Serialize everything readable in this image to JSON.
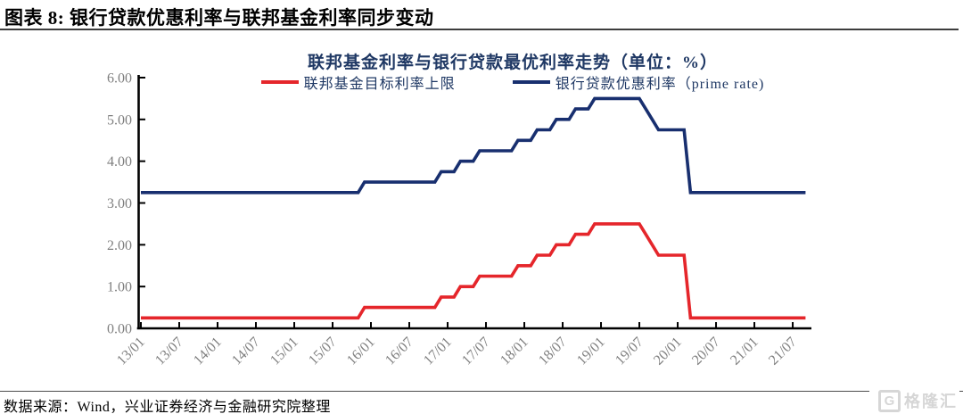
{
  "page": {
    "header_title": "图表 8: 银行贷款优惠利率与联邦基金利率同步变动",
    "footer_source": "数据来源：Wind，兴业证券经济与金融研究院整理",
    "watermark": {
      "icon": "G",
      "text": "格隆汇"
    }
  },
  "chart_data": {
    "type": "line",
    "subtype": "step",
    "frequency": "monthly",
    "title": "联邦基金利率与银行贷款最优利率走势（单位：%）",
    "unit": "%",
    "legend_position": "top",
    "grid": "off",
    "x_start": "13/01",
    "x_end": "21/09",
    "x_tick_labels": [
      "13/01",
      "13/07",
      "14/01",
      "14/07",
      "15/01",
      "15/07",
      "16/01",
      "16/07",
      "17/01",
      "17/07",
      "18/01",
      "18/07",
      "19/01",
      "19/07",
      "20/01",
      "20/07",
      "21/01",
      "21/07"
    ],
    "ylim": [
      0,
      6
    ],
    "y_tick_labels": [
      "0.00",
      "1.00",
      "2.00",
      "3.00",
      "4.00",
      "5.00",
      "6.00"
    ],
    "axis_color": "#000000",
    "tick_label_color": "#7f7f7f",
    "title_color": "#1f3864",
    "series": [
      {
        "name": "联邦基金目标利率上限",
        "color": "#e5262b",
        "step_points": [
          [
            "13/01",
            0.25
          ],
          [
            "15/12",
            0.5
          ],
          [
            "16/12",
            0.75
          ],
          [
            "17/03",
            1.0
          ],
          [
            "17/06",
            1.25
          ],
          [
            "17/12",
            1.5
          ],
          [
            "18/03",
            1.75
          ],
          [
            "18/06",
            2.0
          ],
          [
            "18/09",
            2.25
          ],
          [
            "18/12",
            2.5
          ],
          [
            "19/08",
            2.25
          ],
          [
            "19/09",
            2.0
          ],
          [
            "19/10",
            1.75
          ],
          [
            "20/03",
            0.25
          ]
        ]
      },
      {
        "name": "银行贷款优惠利率（prime rate)",
        "color": "#182f6f",
        "step_points": [
          [
            "13/01",
            3.25
          ],
          [
            "15/12",
            3.5
          ],
          [
            "16/12",
            3.75
          ],
          [
            "17/03",
            4.0
          ],
          [
            "17/06",
            4.25
          ],
          [
            "17/12",
            4.5
          ],
          [
            "18/03",
            4.75
          ],
          [
            "18/06",
            5.0
          ],
          [
            "18/09",
            5.25
          ],
          [
            "18/12",
            5.5
          ],
          [
            "19/08",
            5.25
          ],
          [
            "19/09",
            5.0
          ],
          [
            "19/10",
            4.75
          ],
          [
            "20/03",
            3.25
          ]
        ]
      }
    ]
  }
}
